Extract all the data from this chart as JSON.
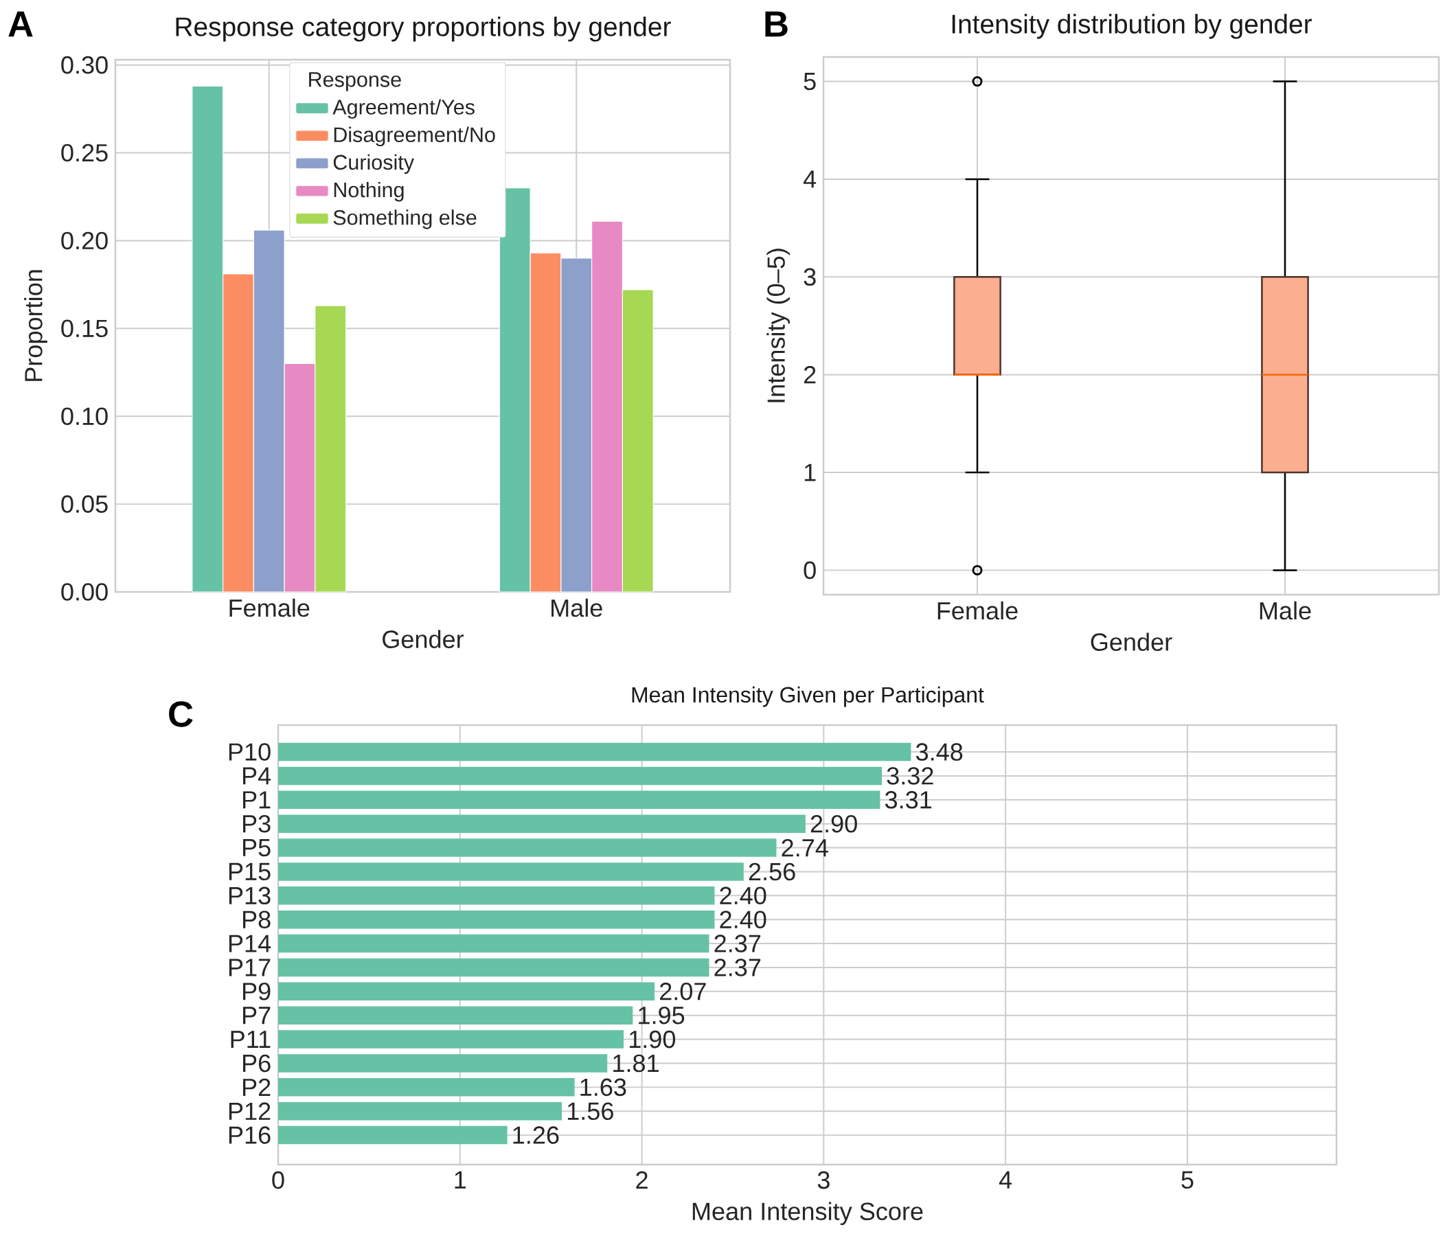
{
  "chart_data": [
    {
      "type": "bar",
      "title": "Response category proportions by gender",
      "xlabel": "Gender",
      "ylabel": "Proportion",
      "categories": [
        "Female",
        "Male"
      ],
      "series": [
        {
          "name": "Agreement/Yes",
          "color": "#66c2a5",
          "values": [
            0.288,
            0.23
          ]
        },
        {
          "name": "Disagreement/No",
          "color": "#fc8d62",
          "values": [
            0.181,
            0.193
          ]
        },
        {
          "name": "Curiosity",
          "color": "#8da0cb",
          "values": [
            0.206,
            0.19
          ]
        },
        {
          "name": "Nothing",
          "color": "#e78ac3",
          "values": [
            0.13,
            0.211
          ]
        },
        {
          "name": "Something else",
          "color": "#a6d854",
          "values": [
            0.163,
            0.172
          ]
        }
      ],
      "ylim": [
        0,
        0.303
      ],
      "yticks": [
        {
          "value": 0,
          "label": "0.00"
        },
        {
          "value": 0.05,
          "label": "0.05"
        },
        {
          "value": 0.1,
          "label": "0.10"
        },
        {
          "value": 0.15,
          "label": "0.15"
        },
        {
          "value": 0.2,
          "label": "0.20"
        },
        {
          "value": 0.25,
          "label": "0.25"
        },
        {
          "value": 0.3,
          "label": "0.30"
        }
      ],
      "grid": true,
      "legend": "top",
      "legend_title": "Response",
      "annotations": [
        "A"
      ]
    },
    {
      "type": "box",
      "title": "Intensity distribution by gender",
      "xlabel": "Gender",
      "ylabel": "Intensity (0–5)",
      "categories": [
        "Female",
        "Male"
      ],
      "series": [
        {
          "color": "#fcae91",
          "boxes": [
            {
              "low": 1,
              "q1": 2,
              "median": 2,
              "q3": 3,
              "high": 4,
              "outliers": [
                0,
                5
              ]
            },
            {
              "low": 0,
              "q1": 1,
              "median": 2,
              "q3": 3,
              "high": 5
            }
          ]
        }
      ],
      "ylim": [
        -0.25,
        5.25
      ],
      "yticks": [
        0,
        1,
        2,
        3,
        4,
        5
      ],
      "grid": true,
      "annotations": [
        "B"
      ]
    },
    {
      "type": "bar",
      "orientation": "horizontal",
      "title": "Mean Intensity Given per Participant",
      "xlabel": "Mean Intensity Score",
      "categories": [
        "P10",
        "P4",
        "P1",
        "P3",
        "P5",
        "P15",
        "P13",
        "P8",
        "P14",
        "P17",
        "P9",
        "P7",
        "P11",
        "P6",
        "P2",
        "P12",
        "P16"
      ],
      "values": [
        3.48,
        3.32,
        3.31,
        2.9,
        2.74,
        2.56,
        2.4,
        2.4,
        2.37,
        2.37,
        2.07,
        1.95,
        1.9,
        1.81,
        1.63,
        1.56,
        1.26
      ],
      "value_labels": [
        "3.48",
        "3.32",
        "3.31",
        "2.90",
        "2.74",
        "2.56",
        "2.40",
        "2.40",
        "2.37",
        "2.37",
        "2.07",
        "1.95",
        "1.90",
        "1.81",
        "1.63",
        "1.56",
        "1.26"
      ],
      "color": "#66c2a5",
      "xlim": [
        0,
        5.82
      ],
      "xticks": [
        0,
        1,
        2,
        3,
        4,
        5
      ],
      "grid": true,
      "annotations": [
        "C"
      ]
    }
  ]
}
